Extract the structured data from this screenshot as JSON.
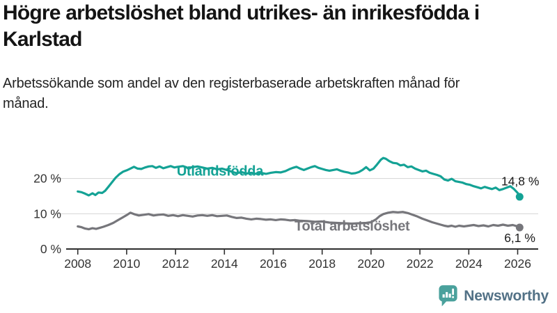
{
  "header": {
    "title": "Högre arbetslöshet bland utrikes- än inrikesfödda i Karlstad",
    "subtitle": "Arbetssökande som andel av den registerbaserade arbetskraften månad för månad."
  },
  "footer": {
    "brand": "Newsworthy"
  },
  "colors": {
    "foreign_born_line": "#14A295",
    "total_line": "#76767B",
    "axis": "#2E2E2E",
    "gridline": "#D9D9D9",
    "tick_label": "#333333",
    "end_label": "#1A1A1A",
    "title": "#141414",
    "logo_teal": "#4AA19C",
    "logo_text": "#527186",
    "background": "#FFFFFF"
  },
  "chart_data": {
    "type": "line",
    "title": "Högre arbetslöshet bland utrikes- än inrikesfödda i Karlstad",
    "subtitle": "Arbetssökande som andel av den registerbaserade arbetskraften månad för månad.",
    "xlabel": "",
    "ylabel": "",
    "grid": "horizontal",
    "legend_position": "inline-labels",
    "xlim": [
      2007.5,
      2026.85
    ],
    "ylim": [
      0,
      32
    ],
    "x_ticks": [
      2008,
      2010,
      2012,
      2014,
      2016,
      2018,
      2020,
      2022,
      2024,
      2026
    ],
    "y_ticks": [
      {
        "value": 0,
        "label": "0 %"
      },
      {
        "value": 10,
        "label": "10 %"
      },
      {
        "value": 20,
        "label": "20 %"
      }
    ],
    "series": [
      {
        "name": "Utlandsfödda",
        "color": "#14A295",
        "end_value": 14.8,
        "end_label": "14,8 %",
        "end_label_pos": [
          2025.33,
          18.0
        ],
        "name_label_pos": [
          2012.05,
          22.0
        ],
        "points": [
          [
            2008.0,
            16.3
          ],
          [
            2008.15,
            16.1
          ],
          [
            2008.3,
            15.7
          ],
          [
            2008.45,
            15.2
          ],
          [
            2008.6,
            15.8
          ],
          [
            2008.72,
            15.3
          ],
          [
            2008.85,
            16.0
          ],
          [
            2009.0,
            15.9
          ],
          [
            2009.12,
            16.5
          ],
          [
            2009.25,
            17.6
          ],
          [
            2009.4,
            18.9
          ],
          [
            2009.55,
            20.2
          ],
          [
            2009.7,
            21.2
          ],
          [
            2009.85,
            21.9
          ],
          [
            2010.0,
            22.3
          ],
          [
            2010.15,
            22.8
          ],
          [
            2010.3,
            23.3
          ],
          [
            2010.45,
            22.8
          ],
          [
            2010.6,
            22.7
          ],
          [
            2010.75,
            23.1
          ],
          [
            2010.9,
            23.4
          ],
          [
            2011.05,
            23.5
          ],
          [
            2011.2,
            23.0
          ],
          [
            2011.35,
            23.4
          ],
          [
            2011.5,
            22.9
          ],
          [
            2011.65,
            23.2
          ],
          [
            2011.8,
            23.5
          ],
          [
            2011.95,
            23.1
          ],
          [
            2012.1,
            23.3
          ],
          [
            2012.3,
            23.5
          ],
          [
            2012.5,
            23.0
          ],
          [
            2012.7,
            23.2
          ],
          [
            2012.9,
            23.4
          ],
          [
            2013.1,
            23.1
          ],
          [
            2013.3,
            22.8
          ],
          [
            2013.5,
            23.0
          ],
          [
            2013.7,
            22.6
          ],
          [
            2013.9,
            22.8
          ],
          [
            2014.1,
            22.4
          ],
          [
            2014.3,
            21.9
          ],
          [
            2014.5,
            21.5
          ],
          [
            2014.7,
            21.8
          ],
          [
            2014.9,
            21.4
          ],
          [
            2015.1,
            21.6
          ],
          [
            2015.3,
            21.3
          ],
          [
            2015.5,
            21.6
          ],
          [
            2015.7,
            21.3
          ],
          [
            2015.9,
            21.6
          ],
          [
            2016.1,
            21.8
          ],
          [
            2016.3,
            21.7
          ],
          [
            2016.5,
            22.1
          ],
          [
            2016.65,
            22.6
          ],
          [
            2016.8,
            23.0
          ],
          [
            2016.95,
            23.3
          ],
          [
            2017.1,
            22.8
          ],
          [
            2017.25,
            22.4
          ],
          [
            2017.4,
            22.8
          ],
          [
            2017.55,
            23.2
          ],
          [
            2017.7,
            23.5
          ],
          [
            2017.85,
            23.0
          ],
          [
            2018.0,
            22.7
          ],
          [
            2018.15,
            22.4
          ],
          [
            2018.3,
            22.2
          ],
          [
            2018.45,
            22.4
          ],
          [
            2018.6,
            22.6
          ],
          [
            2018.75,
            22.2
          ],
          [
            2018.9,
            21.9
          ],
          [
            2019.05,
            21.7
          ],
          [
            2019.2,
            21.4
          ],
          [
            2019.35,
            21.5
          ],
          [
            2019.5,
            21.8
          ],
          [
            2019.65,
            22.4
          ],
          [
            2019.8,
            23.2
          ],
          [
            2019.95,
            22.3
          ],
          [
            2020.1,
            22.8
          ],
          [
            2020.25,
            24.0
          ],
          [
            2020.4,
            25.3
          ],
          [
            2020.5,
            25.8
          ],
          [
            2020.6,
            25.6
          ],
          [
            2020.75,
            24.9
          ],
          [
            2020.9,
            24.4
          ],
          [
            2021.05,
            24.3
          ],
          [
            2021.2,
            23.7
          ],
          [
            2021.35,
            23.9
          ],
          [
            2021.5,
            23.2
          ],
          [
            2021.65,
            23.4
          ],
          [
            2021.8,
            22.8
          ],
          [
            2021.95,
            22.4
          ],
          [
            2022.1,
            22.0
          ],
          [
            2022.25,
            22.2
          ],
          [
            2022.4,
            21.6
          ],
          [
            2022.55,
            21.3
          ],
          [
            2022.7,
            21.0
          ],
          [
            2022.85,
            20.6
          ],
          [
            2023.0,
            19.7
          ],
          [
            2023.15,
            19.4
          ],
          [
            2023.3,
            19.9
          ],
          [
            2023.45,
            19.2
          ],
          [
            2023.6,
            19.0
          ],
          [
            2023.75,
            18.8
          ],
          [
            2023.9,
            18.4
          ],
          [
            2024.05,
            18.2
          ],
          [
            2024.2,
            17.8
          ],
          [
            2024.35,
            17.5
          ],
          [
            2024.5,
            17.2
          ],
          [
            2024.65,
            17.6
          ],
          [
            2024.8,
            17.3
          ],
          [
            2024.95,
            17.0
          ],
          [
            2025.1,
            17.4
          ],
          [
            2025.25,
            16.7
          ],
          [
            2025.4,
            17.0
          ],
          [
            2025.55,
            17.4
          ],
          [
            2025.7,
            17.8
          ],
          [
            2025.85,
            17.0
          ],
          [
            2026.0,
            15.9
          ],
          [
            2026.08,
            14.8
          ]
        ]
      },
      {
        "name": "Total arbetslöshet",
        "color": "#76767B",
        "end_value": 6.1,
        "end_label": "6,1 %",
        "end_label_pos": [
          2025.45,
          2.0
        ],
        "name_label_pos": [
          2016.87,
          6.4
        ],
        "points": [
          [
            2008.0,
            6.4
          ],
          [
            2008.15,
            6.2
          ],
          [
            2008.3,
            5.8
          ],
          [
            2008.45,
            5.6
          ],
          [
            2008.6,
            5.9
          ],
          [
            2008.75,
            5.7
          ],
          [
            2008.9,
            6.0
          ],
          [
            2009.05,
            6.3
          ],
          [
            2009.25,
            6.8
          ],
          [
            2009.45,
            7.4
          ],
          [
            2009.65,
            8.2
          ],
          [
            2009.85,
            9.0
          ],
          [
            2010.0,
            9.6
          ],
          [
            2010.15,
            10.3
          ],
          [
            2010.3,
            9.9
          ],
          [
            2010.5,
            9.5
          ],
          [
            2010.7,
            9.7
          ],
          [
            2010.9,
            9.9
          ],
          [
            2011.1,
            9.5
          ],
          [
            2011.3,
            9.7
          ],
          [
            2011.5,
            9.8
          ],
          [
            2011.7,
            9.4
          ],
          [
            2011.9,
            9.6
          ],
          [
            2012.1,
            9.3
          ],
          [
            2012.3,
            9.6
          ],
          [
            2012.5,
            9.4
          ],
          [
            2012.7,
            9.2
          ],
          [
            2012.9,
            9.5
          ],
          [
            2013.1,
            9.6
          ],
          [
            2013.3,
            9.4
          ],
          [
            2013.5,
            9.6
          ],
          [
            2013.7,
            9.3
          ],
          [
            2013.9,
            9.4
          ],
          [
            2014.1,
            9.5
          ],
          [
            2014.3,
            9.1
          ],
          [
            2014.5,
            8.8
          ],
          [
            2014.7,
            8.9
          ],
          [
            2014.9,
            8.6
          ],
          [
            2015.1,
            8.4
          ],
          [
            2015.3,
            8.6
          ],
          [
            2015.5,
            8.5
          ],
          [
            2015.7,
            8.3
          ],
          [
            2015.9,
            8.4
          ],
          [
            2016.1,
            8.2
          ],
          [
            2016.3,
            8.4
          ],
          [
            2016.5,
            8.3
          ],
          [
            2016.7,
            8.1
          ],
          [
            2016.9,
            8.2
          ],
          [
            2017.1,
            8.0
          ],
          [
            2017.4,
            7.9
          ],
          [
            2017.7,
            7.7
          ],
          [
            2018.0,
            7.8
          ],
          [
            2018.3,
            7.5
          ],
          [
            2018.6,
            7.4
          ],
          [
            2018.9,
            7.3
          ],
          [
            2019.2,
            7.2
          ],
          [
            2019.5,
            7.3
          ],
          [
            2019.8,
            7.4
          ],
          [
            2020.0,
            7.6
          ],
          [
            2020.2,
            8.4
          ],
          [
            2020.35,
            9.3
          ],
          [
            2020.5,
            9.9
          ],
          [
            2020.7,
            10.3
          ],
          [
            2020.9,
            10.5
          ],
          [
            2021.1,
            10.4
          ],
          [
            2021.3,
            10.5
          ],
          [
            2021.5,
            10.2
          ],
          [
            2021.7,
            9.7
          ],
          [
            2021.9,
            9.2
          ],
          [
            2022.1,
            8.6
          ],
          [
            2022.3,
            8.1
          ],
          [
            2022.5,
            7.6
          ],
          [
            2022.7,
            7.2
          ],
          [
            2022.85,
            6.9
          ],
          [
            2023.0,
            6.6
          ],
          [
            2023.15,
            6.4
          ],
          [
            2023.3,
            6.6
          ],
          [
            2023.45,
            6.3
          ],
          [
            2023.6,
            6.6
          ],
          [
            2023.8,
            6.4
          ],
          [
            2024.0,
            6.6
          ],
          [
            2024.2,
            6.8
          ],
          [
            2024.4,
            6.5
          ],
          [
            2024.6,
            6.7
          ],
          [
            2024.8,
            6.4
          ],
          [
            2025.0,
            6.8
          ],
          [
            2025.2,
            6.6
          ],
          [
            2025.4,
            6.9
          ],
          [
            2025.6,
            6.6
          ],
          [
            2025.8,
            6.8
          ],
          [
            2026.0,
            6.4
          ],
          [
            2026.08,
            6.1
          ]
        ]
      }
    ]
  }
}
